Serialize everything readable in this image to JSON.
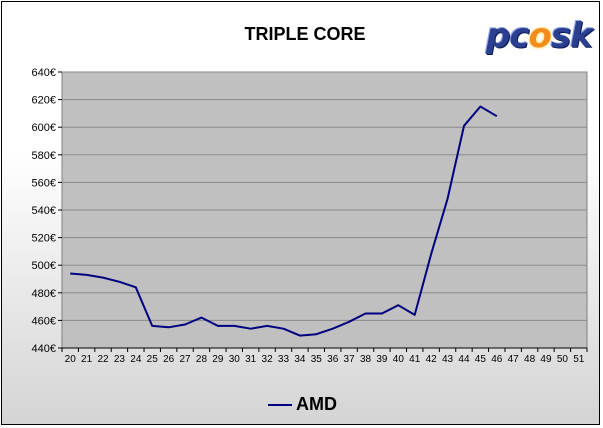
{
  "chart_data": {
    "type": "line",
    "title": "TRIPLE CORE",
    "logo_text": "pcosk",
    "x": [
      20,
      21,
      22,
      23,
      24,
      25,
      26,
      27,
      28,
      29,
      30,
      31,
      32,
      33,
      34,
      35,
      36,
      37,
      38,
      39,
      40,
      41,
      42,
      43,
      44,
      45,
      46,
      47,
      48,
      49,
      50,
      51
    ],
    "xlim": [
      20,
      51
    ],
    "ylim": [
      440,
      640
    ],
    "y_ticks": [
      440,
      460,
      480,
      500,
      520,
      540,
      560,
      580,
      600,
      620,
      640
    ],
    "y_tick_suffix": "€",
    "grid": true,
    "legend_position": "bottom",
    "series": [
      {
        "name": "AMD",
        "color": "#000080",
        "values": [
          494,
          493,
          491,
          488,
          484,
          456,
          455,
          457,
          462,
          456,
          456,
          454,
          456,
          454,
          449,
          450,
          454,
          459,
          465,
          465,
          471,
          464,
          508,
          548,
          601,
          615,
          608,
          null,
          null,
          null,
          null,
          null
        ]
      }
    ]
  },
  "colors": {
    "plot_background": "#c0c0c0",
    "grid": "#8a8a8a",
    "line": "#000080"
  }
}
